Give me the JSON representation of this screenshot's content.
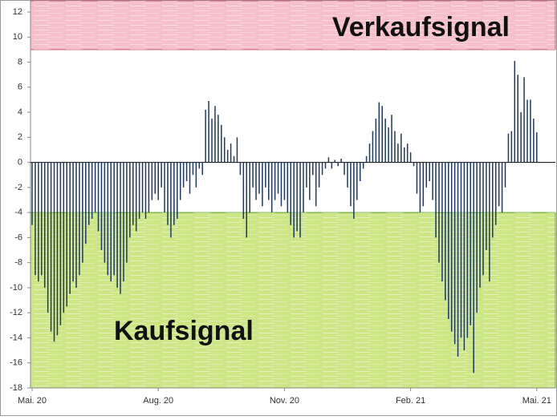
{
  "chart_data": {
    "type": "bar",
    "categories": [
      "Mai. 20",
      null,
      null,
      null,
      null,
      null,
      null,
      null,
      null,
      null,
      null,
      null,
      null,
      null,
      null,
      null,
      null,
      null,
      null,
      null,
      null,
      null,
      null,
      null,
      null,
      null,
      null,
      null,
      null,
      null,
      null,
      null,
      null,
      null,
      null,
      null,
      null,
      null,
      null,
      null,
      "Aug. 20",
      null,
      null,
      null,
      null,
      null,
      null,
      null,
      null,
      null,
      null,
      null,
      null,
      null,
      null,
      null,
      null,
      null,
      null,
      null,
      null,
      null,
      null,
      null,
      null,
      null,
      null,
      null,
      null,
      null,
      null,
      null,
      null,
      null,
      null,
      null,
      null,
      null,
      null,
      null,
      "Nov. 20",
      null,
      null,
      null,
      null,
      null,
      null,
      null,
      null,
      null,
      null,
      null,
      null,
      null,
      null,
      null,
      null,
      null,
      null,
      null,
      null,
      null,
      null,
      null,
      null,
      null,
      null,
      null,
      null,
      null,
      null,
      null,
      null,
      null,
      null,
      null,
      null,
      null,
      null,
      null,
      "Feb. 21",
      null,
      null,
      null,
      null,
      null,
      null,
      null,
      null,
      null,
      null,
      null,
      null,
      null,
      null,
      null,
      null,
      null,
      null,
      null,
      null,
      null,
      null,
      null,
      null,
      null,
      null,
      null,
      null,
      null,
      null,
      null,
      null,
      null,
      null,
      null,
      null,
      null,
      null,
      null,
      "Mai. 21"
    ],
    "values": [
      -5,
      -9,
      -9.5,
      -9,
      -10,
      -12,
      -13.5,
      -14.3,
      -13.8,
      -13,
      -12,
      -11.5,
      -10.5,
      -9.5,
      -10,
      -9,
      -8,
      -6.5,
      -5,
      -4.5,
      -4,
      -5.5,
      -7,
      -8,
      -9,
      -9.5,
      -9,
      -10,
      -10.5,
      -9.5,
      -8,
      -6,
      -5,
      -5.5,
      -4.5,
      -4,
      -4.5,
      -4,
      -3,
      -2.5,
      -3,
      -2,
      -4,
      -5,
      -6,
      -5,
      -4.5,
      -3,
      -2,
      -1.5,
      -2.5,
      -1,
      -2,
      -0.5,
      -1,
      4.2,
      4.9,
      3.5,
      4.5,
      3.8,
      3,
      2,
      1,
      1.5,
      0.5,
      2,
      -1,
      -4.5,
      -6,
      -4,
      -2,
      -3,
      -2.5,
      -3.5,
      -2,
      -3,
      -4,
      -3,
      -2.5,
      -3.5,
      -3,
      -4,
      -5,
      -6,
      -5.5,
      -6,
      -4,
      -2,
      -3,
      -1,
      -3.5,
      -2,
      -1,
      -0.5,
      0.4,
      -0.5,
      0.2,
      -0.3,
      0.3,
      -1,
      -2,
      -3.5,
      -4.5,
      -3,
      -1.5,
      -0.5,
      0.5,
      1.5,
      2.5,
      3.5,
      4.8,
      4.5,
      3.5,
      2.8,
      3.8,
      2.5,
      1.5,
      2.3,
      1.2,
      1.5,
      0.8,
      -0.3,
      -2.5,
      -4,
      -3.5,
      -2,
      -1.5,
      -3,
      -6,
      -8,
      -9.5,
      -11,
      -12.5,
      -13.5,
      -14.5,
      -15.5,
      -14,
      -15,
      -14,
      -13,
      -16.8,
      -12,
      -10,
      -9,
      -7,
      -9.5,
      -6,
      -5,
      -3.5,
      -4,
      -2,
      2.3,
      2.5,
      8.1,
      7,
      4,
      6.8,
      5,
      5,
      3.5,
      2.4
    ],
    "color": "#1f3864",
    "ylim": [
      -18,
      12
    ],
    "yticks": [
      -18,
      -16,
      -14,
      -12,
      -10,
      -8,
      -6,
      -4,
      -2,
      0,
      2,
      4,
      6,
      8,
      10,
      12
    ],
    "zones": [
      {
        "label": "Verkaufsignal",
        "from": 9,
        "to": 12,
        "color": "#f6c0cb"
      },
      {
        "label": "Kaufsignal",
        "from": -18,
        "to": -4,
        "color": "#cde685"
      }
    ]
  }
}
